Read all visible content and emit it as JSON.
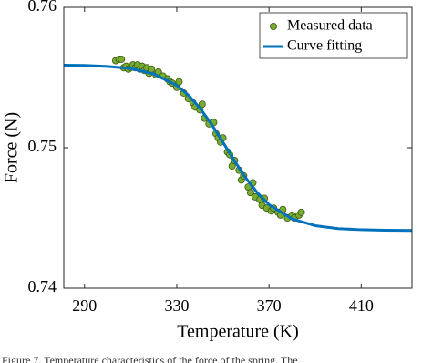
{
  "chart_data": {
    "type": "scatter",
    "x_label": "Temperature (K)",
    "y_label": "Force (N)",
    "xlim": [
      281,
      432
    ],
    "ylim": [
      0.74,
      0.76
    ],
    "xticks": [
      290,
      330,
      370,
      410
    ],
    "yticks": [
      0.74,
      0.75,
      0.76
    ],
    "grid": false,
    "legend": "upper right",
    "caption": "Figure 7. Temperature characteristics of the force of the spring. The",
    "series": [
      {
        "name": "Measured data",
        "type": "scatter",
        "color": "#77ac30",
        "x": [
          303.5,
          305,
          306,
          307,
          308,
          309,
          310,
          311,
          312,
          313,
          314,
          315,
          316,
          317,
          318,
          319,
          321,
          322,
          324,
          326,
          327,
          328,
          330,
          331,
          333,
          335,
          337,
          338,
          340,
          341,
          342,
          344,
          346,
          347,
          348,
          349,
          350,
          352,
          353,
          354,
          355,
          357,
          358,
          359,
          361,
          362,
          363,
          364,
          366,
          367,
          368,
          369,
          371,
          372,
          374,
          375,
          376,
          378,
          380,
          381,
          383,
          384
        ],
        "values": [
          0.7562,
          0.7563,
          0.7563,
          0.7557,
          0.7558,
          0.7556,
          0.7557,
          0.7559,
          0.7557,
          0.7559,
          0.7556,
          0.7558,
          0.7555,
          0.7557,
          0.7553,
          0.7556,
          0.7552,
          0.7554,
          0.7551,
          0.7549,
          0.7547,
          0.7546,
          0.7543,
          0.7547,
          0.7539,
          0.7535,
          0.7532,
          0.7529,
          0.7527,
          0.7531,
          0.7521,
          0.7517,
          0.7518,
          0.751,
          0.7507,
          0.7504,
          0.7507,
          0.7497,
          0.7495,
          0.7487,
          0.7491,
          0.7484,
          0.7477,
          0.748,
          0.7472,
          0.7468,
          0.7475,
          0.7465,
          0.7463,
          0.7459,
          0.7464,
          0.7457,
          0.7455,
          0.7457,
          0.7454,
          0.7452,
          0.7456,
          0.745,
          0.7452,
          0.745,
          0.7452,
          0.7454
        ]
      },
      {
        "name": "Curve fitting",
        "type": "line",
        "color": "#0072bd",
        "x": [
          281,
          290,
          300,
          310,
          320,
          330,
          335,
          340,
          345,
          350,
          355,
          360,
          365,
          370,
          380,
          390,
          400,
          410,
          420,
          432
        ],
        "values": [
          0.75588,
          0.75586,
          0.75579,
          0.75564,
          0.75526,
          0.75444,
          0.75375,
          0.75283,
          0.75169,
          0.7504,
          0.74907,
          0.74783,
          0.74678,
          0.74595,
          0.74493,
          0.74445,
          0.74424,
          0.74416,
          0.74412,
          0.74411
        ]
      }
    ]
  }
}
